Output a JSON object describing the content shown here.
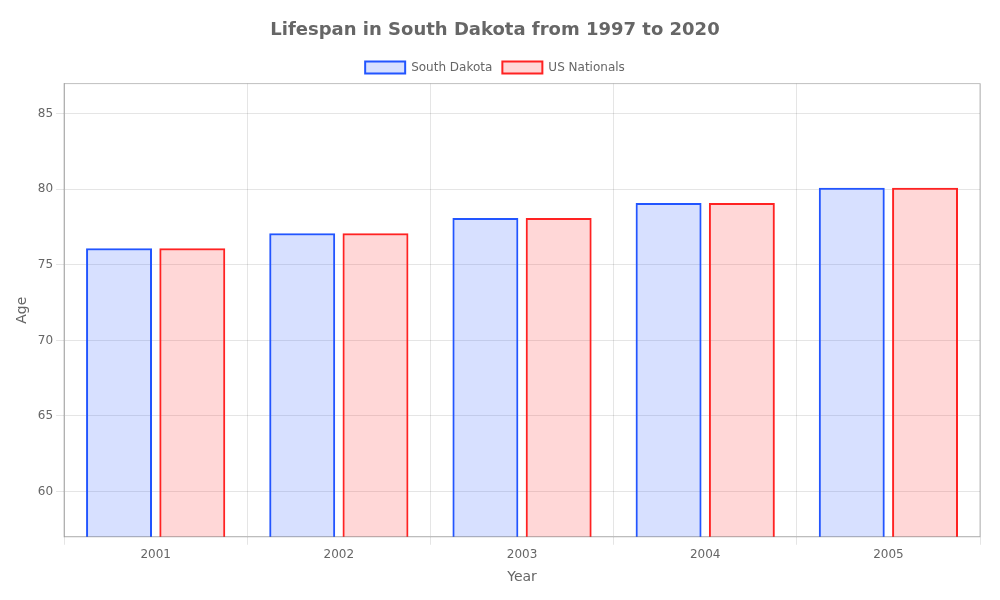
{
  "chart_data": {
    "type": "bar",
    "title": "Lifespan in South Dakota from 1997 to 2020",
    "x_label": "Year",
    "y_label": "Age",
    "categories": [
      "2001",
      "2002",
      "2003",
      "2004",
      "2005"
    ],
    "series": [
      {
        "name": "South Dakota",
        "color": "#2255ff",
        "values": [
          76.1,
          77.1,
          78.1,
          79.1,
          80.1
        ]
      },
      {
        "name": "US Nationals",
        "color": "#ff2222",
        "values": [
          76.1,
          77.1,
          78.1,
          79.1,
          80.1
        ]
      }
    ],
    "ylim": [
      57,
      87
    ],
    "yticks": [
      60,
      65,
      70,
      75,
      80,
      85
    ],
    "grid": true,
    "legend": "top"
  }
}
